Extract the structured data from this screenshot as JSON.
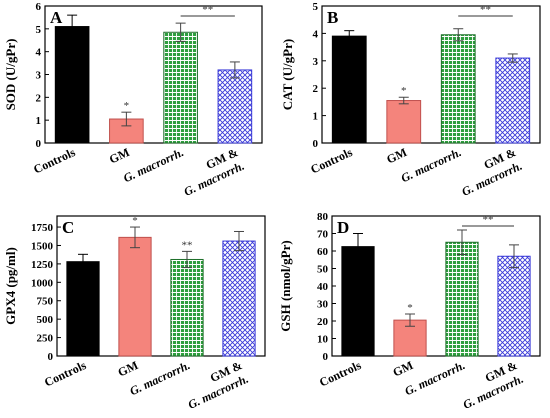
{
  "chart_data": [
    {
      "panel_label": "A",
      "type": "bar",
      "ylabel": "SOD (U/gPr)",
      "ylim": [
        0,
        6
      ],
      "yticks": [
        0,
        1,
        2,
        3,
        4,
        5,
        6
      ],
      "categories": [
        "Controls",
        "GM",
        "G. macrorrh.",
        "GM &\nG. macrorrh."
      ],
      "values": [
        5.1,
        1.05,
        4.85,
        3.2
      ],
      "errors": [
        0.5,
        0.3,
        0.4,
        0.35
      ],
      "star_labels": [
        "",
        "*",
        "",
        ""
      ],
      "bracket": {
        "from": 2,
        "to": 3,
        "label": "**"
      }
    },
    {
      "panel_label": "B",
      "type": "bar",
      "ylabel": "CAT (U/gPr)",
      "ylim": [
        0,
        5
      ],
      "yticks": [
        0,
        1,
        2,
        3,
        4,
        5
      ],
      "categories": [
        "Controls",
        "GM",
        "G. macrorrh.",
        "GM &\nG. macrorrh."
      ],
      "values": [
        3.9,
        1.55,
        3.95,
        3.1
      ],
      "errors": [
        0.2,
        0.12,
        0.22,
        0.15
      ],
      "star_labels": [
        "",
        "*",
        "",
        ""
      ],
      "bracket": {
        "from": 2,
        "to": 3,
        "label": "**"
      }
    },
    {
      "panel_label": "C",
      "type": "bar",
      "ylabel": "GPX4 (pg/ml)",
      "ylim": [
        0,
        1900
      ],
      "yticks": [
        0,
        250,
        500,
        750,
        1000,
        1250,
        1500,
        1750
      ],
      "categories": [
        "Controls",
        "GM",
        "G. macrorrh.",
        "GM &\nG. macrorrh."
      ],
      "values": [
        1280,
        1610,
        1310,
        1560
      ],
      "errors": [
        100,
        140,
        110,
        130
      ],
      "star_labels": [
        "",
        "*",
        "**",
        ""
      ],
      "bracket": null
    },
    {
      "panel_label": "D",
      "type": "bar",
      "ylabel": "GSH (nmol/gPr)",
      "ylim": [
        0,
        80
      ],
      "yticks": [
        0,
        10,
        20,
        30,
        40,
        50,
        60,
        70,
        80
      ],
      "categories": [
        "Controls",
        "GM",
        "G. macrorrh.",
        "GM &\nG. macrorrh."
      ],
      "values": [
        62.5,
        20.5,
        65,
        57
      ],
      "errors": [
        7.5,
        3.5,
        7,
        6.5
      ],
      "star_labels": [
        "",
        "*",
        "",
        ""
      ],
      "bracket": {
        "from": 2,
        "to": 3,
        "label": "**"
      }
    }
  ],
  "colors": {
    "controls": "#000000",
    "gm": "#f4847c",
    "gm_edge": "#c0504d",
    "g_macrorrh_fill": "#2e9e3e",
    "g_macrorrh_grid": "#ffffff",
    "combo_line": "#3a3ad8",
    "combo_bg": "#ffffff"
  }
}
